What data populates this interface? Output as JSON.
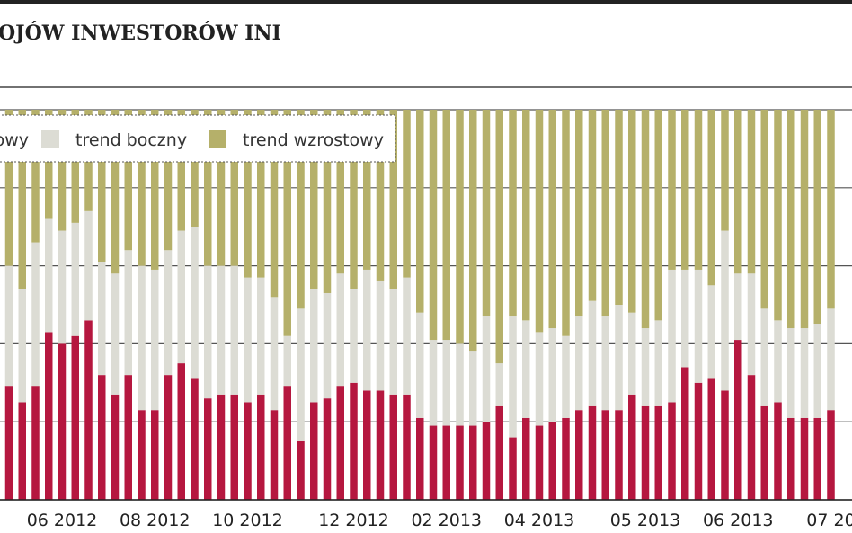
{
  "chart_data": {
    "type": "stacked_bar",
    "title": "OJÓW INWESTORÓW INI",
    "categories": [
      null,
      null,
      null,
      null,
      "06 2012",
      null,
      null,
      null,
      null,
      null,
      null,
      "08 2012",
      null,
      null,
      null,
      null,
      null,
      null,
      "10 2012",
      null,
      null,
      null,
      null,
      null,
      null,
      null,
      "12 2012",
      null,
      null,
      null,
      null,
      null,
      null,
      "02 2013",
      null,
      null,
      null,
      null,
      null,
      null,
      "04 2013",
      null,
      null,
      null,
      null,
      null,
      null,
      null,
      "05 2013",
      null,
      null,
      null,
      null,
      null,
      null,
      "06 2013",
      null,
      null,
      null,
      null,
      null,
      null,
      "07 20"
    ],
    "series": [
      {
        "name": "towy",
        "color": "#b5173f",
        "values": [
          29,
          25,
          29,
          43,
          40,
          42,
          46,
          32,
          27,
          32,
          23,
          23,
          32,
          35,
          31,
          26,
          27,
          27,
          25,
          27,
          23,
          29,
          15,
          25,
          26,
          29,
          30,
          28,
          28,
          27,
          27,
          21,
          19,
          19,
          19,
          19,
          20,
          24,
          16,
          21,
          19,
          20,
          21,
          23,
          24,
          23,
          23,
          27,
          24,
          24,
          25,
          34,
          30,
          31,
          28,
          41,
          32,
          24,
          25,
          21,
          21,
          21,
          23
        ]
      },
      {
        "name": "trend boczny",
        "color": "#dcdcd4",
        "values": [
          31,
          29,
          37,
          29,
          29,
          29,
          28,
          29,
          31,
          32,
          37,
          36,
          32,
          34,
          39,
          34,
          33,
          33,
          32,
          30,
          29,
          13,
          34,
          29,
          27,
          29,
          24,
          31,
          28,
          27,
          30,
          27,
          22,
          22,
          21,
          19,
          27,
          11,
          31,
          25,
          24,
          24,
          21,
          24,
          27,
          24,
          27,
          21,
          20,
          22,
          34,
          25,
          29,
          24,
          41,
          17,
          26,
          25,
          21,
          23,
          23,
          24,
          26
        ]
      },
      {
        "name": "trend wzrostowy",
        "color": "#b5b06a",
        "values": [
          40,
          46,
          34,
          28,
          31,
          29,
          26,
          39,
          42,
          36,
          40,
          41,
          36,
          31,
          30,
          40,
          40,
          40,
          43,
          43,
          48,
          58,
          51,
          46,
          47,
          42,
          46,
          41,
          44,
          46,
          43,
          52,
          59,
          59,
          60,
          62,
          53,
          65,
          53,
          54,
          57,
          56,
          58,
          53,
          49,
          53,
          50,
          52,
          56,
          54,
          41,
          41,
          41,
          45,
          31,
          42,
          42,
          51,
          54,
          56,
          56,
          55,
          51
        ]
      }
    ],
    "ylim": [
      0,
      100
    ],
    "yticks": [
      0,
      20,
      40,
      60,
      80,
      100
    ],
    "grid": true
  }
}
